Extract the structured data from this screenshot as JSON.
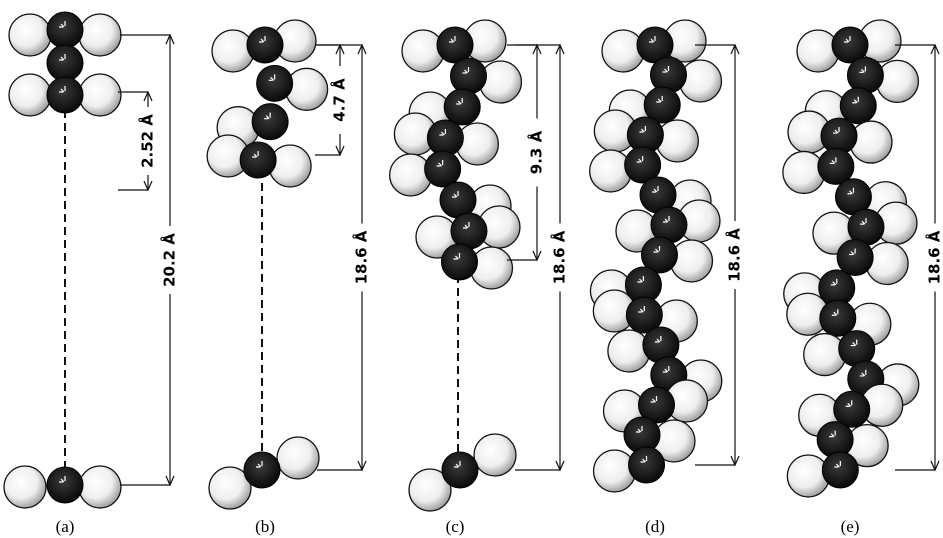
{
  "panels": [
    {
      "label": "(a)",
      "dimensions": [
        "2.52 Å",
        "20.2 Å"
      ]
    },
    {
      "label": "(b)",
      "dimensions": [
        "4.7 Å",
        "18.6 Å"
      ]
    },
    {
      "label": "(c)",
      "dimensions": [
        "9.3 Å",
        "18.6 Å"
      ]
    },
    {
      "label": "(d)",
      "dimensions": [
        "18.6 Å"
      ]
    },
    {
      "label": "(e)",
      "dimensions": [
        "18.6 Å"
      ]
    }
  ]
}
